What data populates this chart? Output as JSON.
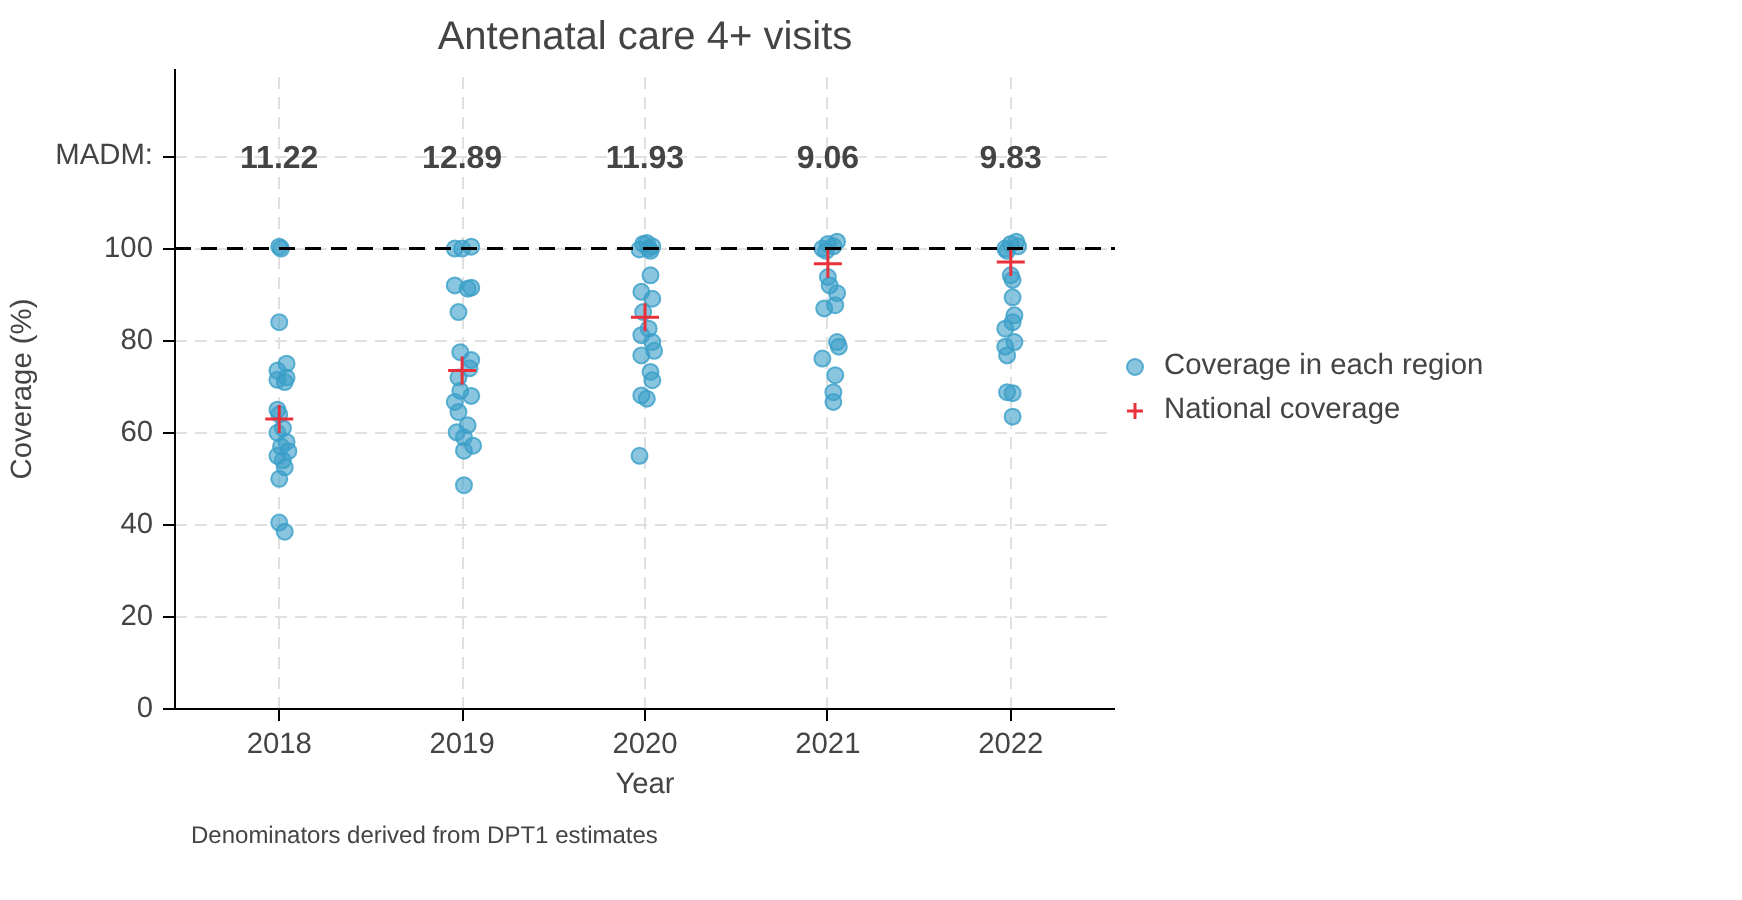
{
  "chart_data": {
    "type": "scatter",
    "title": "Antenatal care 4+ visits",
    "xlabel": "Year",
    "ylabel": "Coverage (%)",
    "xlim": [
      2017.43,
      2022.57
    ],
    "xticks": [
      2018,
      2019,
      2020,
      2021,
      2022
    ],
    "ylim": [
      0,
      139
    ],
    "yticks": [
      0,
      20,
      40,
      60,
      80,
      100,
      {
        "value": 120,
        "label": "MADM:"
      }
    ],
    "grid": true,
    "legend": "right",
    "series": [
      {
        "name": "Coverage in each region",
        "color": "#3a9fc8",
        "marker": "circle",
        "x": [
          2018,
          2018.01,
          2018,
          2018.04,
          2017.99,
          2018.04,
          2017.99,
          2018.03,
          2017.99,
          2018,
          2018.02,
          2017.99,
          2018.04,
          2018.01,
          2018.05,
          2017.99,
          2018.02,
          2018.03,
          2018,
          2018,
          2018.03,
          2018.96,
          2019,
          2019.05,
          2018.96,
          2019.03,
          2019.05,
          2018.98,
          2018.99,
          2019.05,
          2019.04,
          2018.98,
          2018.99,
          2019.05,
          2018.96,
          2018.98,
          2019.03,
          2018.97,
          2019.01,
          2019.06,
          2019.01,
          2019.01,
          2019.99,
          2020.02,
          2020.03,
          2020.01,
          2020.04,
          2019.97,
          2020.03,
          2019.98,
          2020.04,
          2019.99,
          2020.02,
          2019.98,
          2020.04,
          2020.05,
          2019.98,
          2020.03,
          2020.04,
          2019.98,
          2020.01,
          2019.97,
          2020.97,
          2021,
          2021.03,
          2021.05,
          2020.99,
          2021,
          2021.01,
          2021.05,
          2021.04,
          2020.98,
          2021.05,
          2021.06,
          2020.97,
          2021.04,
          2021.03,
          2021.03,
          2021.97,
          2022,
          2022.03,
          2022.04,
          2021.98,
          2022,
          2022.01,
          2022.01,
          2022.02,
          2022.01,
          2021.97,
          2022.02,
          2021.97,
          2021.98,
          2021.98,
          2022.01,
          2022.01
        ],
        "values": [
          100.4,
          100,
          84,
          75,
          73.5,
          72,
          71.5,
          71,
          65,
          64,
          61,
          60,
          58,
          57,
          56,
          55,
          54,
          52.5,
          50,
          40.5,
          38.5,
          100,
          100,
          100.4,
          92,
          91.3,
          91.5,
          86.2,
          77.5,
          75.8,
          74,
          72,
          69.1,
          68,
          66.7,
          64.5,
          61.6,
          60.1,
          59,
          57.2,
          56.1,
          48.6,
          101,
          100,
          99.5,
          101.2,
          100.5,
          99.8,
          94.2,
          90.6,
          89.1,
          86.2,
          82.6,
          81.2,
          79.7,
          77.8,
          76.8,
          73.2,
          71.4,
          68.1,
          67.4,
          55,
          100,
          101,
          100.5,
          101.5,
          99.5,
          93.8,
          92,
          90.3,
          87.7,
          87,
          79.7,
          78.7,
          76.1,
          72.5,
          68.8,
          66.7,
          100,
          101,
          101.5,
          100.5,
          99.5,
          94.2,
          93.2,
          89.4,
          85.5,
          84,
          82.6,
          79.7,
          78.7,
          76.8,
          68.8,
          68.6,
          63.5
        ]
      },
      {
        "name": "National coverage",
        "color": "#e8313a",
        "marker": "cross",
        "x": [
          2018,
          2019,
          2020,
          2021,
          2022
        ],
        "values": [
          63,
          73.5,
          85.1,
          96.7,
          97.1
        ]
      }
    ],
    "ref_lines": [
      {
        "axis": "y",
        "value": 100,
        "color": "#000000",
        "line_style": "dashed"
      }
    ],
    "annotations": [
      "11.22",
      "12.89",
      "11.93",
      "9.06",
      "9.83",
      "Denominators derived from DPT1 estimates"
    ]
  }
}
